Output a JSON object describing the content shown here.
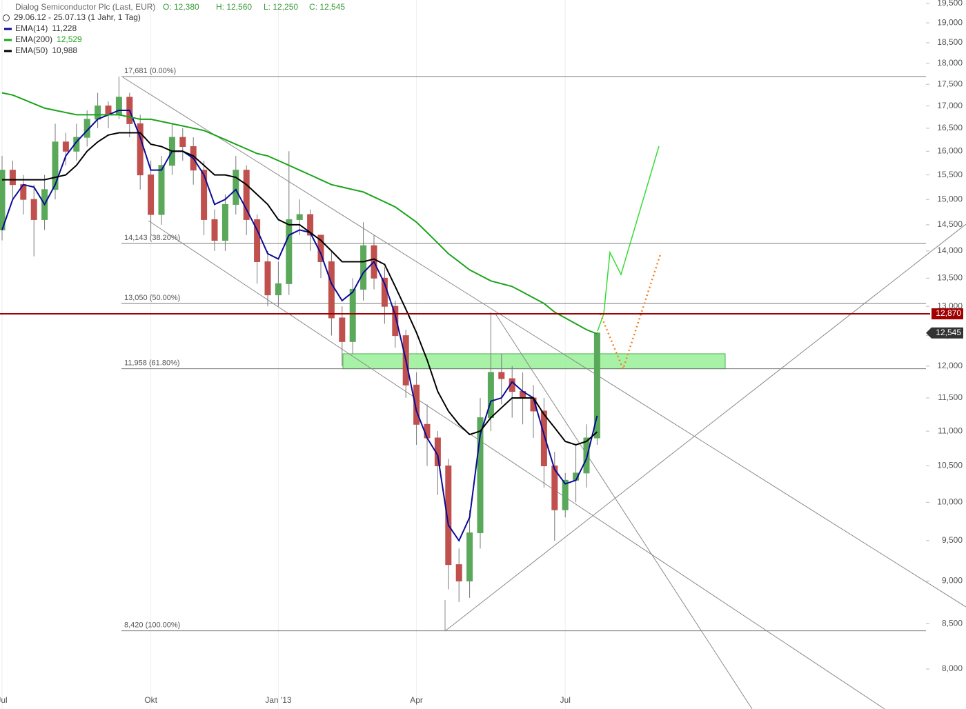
{
  "chart_data": {
    "type": "candlestick",
    "header": {
      "title": "Dialog Semiconductor Plc (Last, EUR)",
      "quote": [
        {
          "value": 12380,
          "label": "O: 12,380"
        },
        {
          "value": 12560,
          "label": "H: 12,560"
        },
        {
          "value": 12250,
          "label": "L: 12,250"
        },
        {
          "value": 12545,
          "label": "C: 12,545"
        }
      ],
      "period": "29.06.12 - 25.07.13 (1 Jahr, 1 Tag)"
    },
    "categories": [
      "Jul",
      null,
      null,
      null,
      null,
      null,
      null,
      null,
      null,
      null,
      null,
      null,
      null,
      null,
      "Okt",
      null,
      null,
      null,
      null,
      null,
      null,
      null,
      null,
      null,
      null,
      null,
      "Jan '13",
      null,
      null,
      null,
      null,
      null,
      null,
      null,
      null,
      null,
      null,
      null,
      null,
      "Apr",
      null,
      null,
      null,
      null,
      null,
      null,
      null,
      null,
      null,
      null,
      null,
      null,
      null,
      "Jul",
      null,
      null,
      null
    ],
    "open": [
      14400,
      15600,
      15300,
      15000,
      14600,
      15200,
      16200,
      16000,
      16300,
      16700,
      17000,
      16800,
      17200,
      16600,
      15500,
      14700,
      15700,
      16300,
      16100,
      15600,
      14600,
      14200,
      14900,
      15600,
      14600,
      13800,
      13200,
      13400,
      14600,
      14700,
      14300,
      13800,
      12800,
      12400,
      13300,
      14100,
      13500,
      13000,
      12500,
      11700,
      11100,
      10900,
      10500,
      9200,
      9000,
      9600,
      11200,
      11900,
      11800,
      11600,
      11500,
      11300,
      10500,
      9900,
      10300,
      10400,
      10900
    ],
    "high": [
      15900,
      15800,
      15500,
      15300,
      15500,
      16600,
      16400,
      16600,
      16900,
      17300,
      17100,
      17681,
      17300,
      16800,
      15800,
      15900,
      16600,
      16500,
      16300,
      15800,
      14800,
      15100,
      15900,
      15700,
      14700,
      14000,
      13800,
      16000,
      15000,
      14800,
      14300,
      14000,
      13000,
      13500,
      14550,
      14300,
      13700,
      13100,
      12600,
      11900,
      11400,
      11000,
      10600,
      9400,
      9900,
      11500,
      12900,
      12200,
      12000,
      11900,
      11700,
      11500,
      10700,
      10400,
      10800,
      11100,
      12560
    ],
    "low": [
      14200,
      15000,
      14700,
      13900,
      14400,
      15000,
      15700,
      15800,
      16100,
      16500,
      16500,
      16700,
      16300,
      15200,
      14300,
      14500,
      15500,
      15800,
      15300,
      14300,
      14000,
      14000,
      14700,
      14300,
      13400,
      13000,
      13000,
      13200,
      14300,
      14000,
      13500,
      12500,
      12000,
      12200,
      13100,
      13300,
      12700,
      12300,
      11500,
      10800,
      10500,
      10100,
      8900,
      8750,
      8800,
      9400,
      11000,
      11400,
      11200,
      11100,
      10900,
      10200,
      9500,
      9800,
      10000,
      10200,
      10800
    ],
    "close": [
      15600,
      15300,
      15000,
      14600,
      15200,
      16200,
      16000,
      16300,
      16700,
      17000,
      16800,
      17200,
      16600,
      15500,
      14700,
      15700,
      16300,
      16100,
      15600,
      14600,
      14200,
      14900,
      15600,
      14600,
      13800,
      13200,
      13400,
      14600,
      14700,
      14300,
      13800,
      12800,
      12400,
      13300,
      14100,
      13500,
      13000,
      12500,
      11700,
      11100,
      10900,
      10500,
      9200,
      9000,
      9600,
      11200,
      11900,
      11800,
      11600,
      11500,
      11300,
      10500,
      9900,
      10300,
      10400,
      10900,
      12545
    ],
    "up_color": "#5aa85a",
    "down_color": "#c0504d",
    "series": [
      {
        "name": "EMA(14)",
        "color": "#0a0a96",
        "last": {
          "value": 11228,
          "label": "11,228"
        },
        "values": [
          14400,
          15000,
          15300,
          15250,
          14900,
          15300,
          15900,
          16200,
          16450,
          16700,
          16800,
          16900,
          16900,
          16300,
          15600,
          15600,
          16000,
          16000,
          15850,
          15500,
          14900,
          15000,
          15200,
          14800,
          14400,
          13950,
          13850,
          14300,
          14400,
          14350,
          13950,
          13400,
          13100,
          13250,
          13600,
          13800,
          13400,
          12850,
          12100,
          11300,
          10900,
          10650,
          9700,
          9500,
          9800,
          10950,
          11450,
          11500,
          11750,
          11600,
          11500,
          10950,
          10450,
          10250,
          10300,
          10600,
          11228
        ]
      },
      {
        "name": "EMA(200)",
        "color": "#1aa31a",
        "last": {
          "value": 12529,
          "label": "12,529"
        },
        "values": [
          17300,
          17250,
          17150,
          17050,
          16950,
          16900,
          16850,
          16800,
          16800,
          16800,
          16800,
          16800,
          16750,
          16700,
          16700,
          16650,
          16600,
          16550,
          16500,
          16450,
          16350,
          16250,
          16150,
          16050,
          15950,
          15900,
          15800,
          15700,
          15600,
          15500,
          15400,
          15300,
          15250,
          15200,
          15150,
          15050,
          14950,
          14850,
          14700,
          14550,
          14350,
          14150,
          13950,
          13800,
          13650,
          13550,
          13450,
          13400,
          13350,
          13250,
          13150,
          13050,
          12900,
          12800,
          12700,
          12600,
          12529
        ]
      },
      {
        "name": "EMA(50)",
        "color": "#000000",
        "last": {
          "value": 10988,
          "label": "10,988"
        },
        "values": [
          15400,
          15400,
          15400,
          15400,
          15400,
          15450,
          15500,
          15700,
          16000,
          16200,
          16350,
          16400,
          16400,
          16400,
          16150,
          16100,
          16000,
          16000,
          15900,
          15700,
          15500,
          15500,
          15450,
          15300,
          15100,
          14900,
          14600,
          14500,
          14500,
          14350,
          14200,
          14000,
          13800,
          13800,
          13800,
          13850,
          13750,
          13350,
          12950,
          12550,
          12100,
          11600,
          11300,
          11100,
          10950,
          11000,
          11200,
          11350,
          11500,
          11500,
          11500,
          11250,
          11050,
          10850,
          10800,
          10850,
          10988
        ]
      }
    ],
    "fib_levels": [
      {
        "value": 17681,
        "label": "17,681 (0.00%)"
      },
      {
        "value": 14143,
        "label": "14,143 (38.20%)"
      },
      {
        "value": 13050,
        "label": "13,050 (50.00%)"
      },
      {
        "value": 11958,
        "label": "11,958 (61.80%)"
      },
      {
        "value": 8420,
        "label": "8,420 (100.00%)"
      }
    ],
    "horizontal_line": {
      "value": 12870,
      "label": "12,870",
      "color": "#a00000"
    },
    "last_price": {
      "value": 12545,
      "label": "12,545"
    },
    "zone": {
      "low": 11958,
      "high": 12200,
      "color": "#98f098"
    },
    "log_scale": true,
    "ylim": [
      7583,
      19590
    ],
    "yticks": [
      {
        "value": 8000,
        "label": "8,000"
      },
      {
        "value": 8500,
        "label": "8,500"
      },
      {
        "value": 9000,
        "label": "9,000"
      },
      {
        "value": 9500,
        "label": "9,500"
      },
      {
        "value": 10000,
        "label": "10,000"
      },
      {
        "value": 10500,
        "label": "10,500"
      },
      {
        "value": 11000,
        "label": "11,000"
      },
      {
        "value": 11500,
        "label": "11,500"
      },
      {
        "value": 12000,
        "label": "12,000"
      },
      {
        "value": 12500,
        "label": "12,500"
      },
      {
        "value": 13000,
        "label": "13,000"
      },
      {
        "value": 13500,
        "label": "13,500"
      },
      {
        "value": 14000,
        "label": "14,000"
      },
      {
        "value": 14500,
        "label": "14,500"
      },
      {
        "value": 15000,
        "label": "15,000"
      },
      {
        "value": 15500,
        "label": "15,500"
      },
      {
        "value": 16000,
        "label": "16,000"
      },
      {
        "value": 16500,
        "label": "16,500"
      },
      {
        "value": 17000,
        "label": "17,000"
      },
      {
        "value": 17500,
        "label": "17,500"
      },
      {
        "value": 18000,
        "label": "18,000"
      },
      {
        "value": 18500,
        "label": "18,500"
      },
      {
        "value": 19000,
        "label": "19,000"
      },
      {
        "value": 19500,
        "label": "19,500"
      }
    ]
  }
}
